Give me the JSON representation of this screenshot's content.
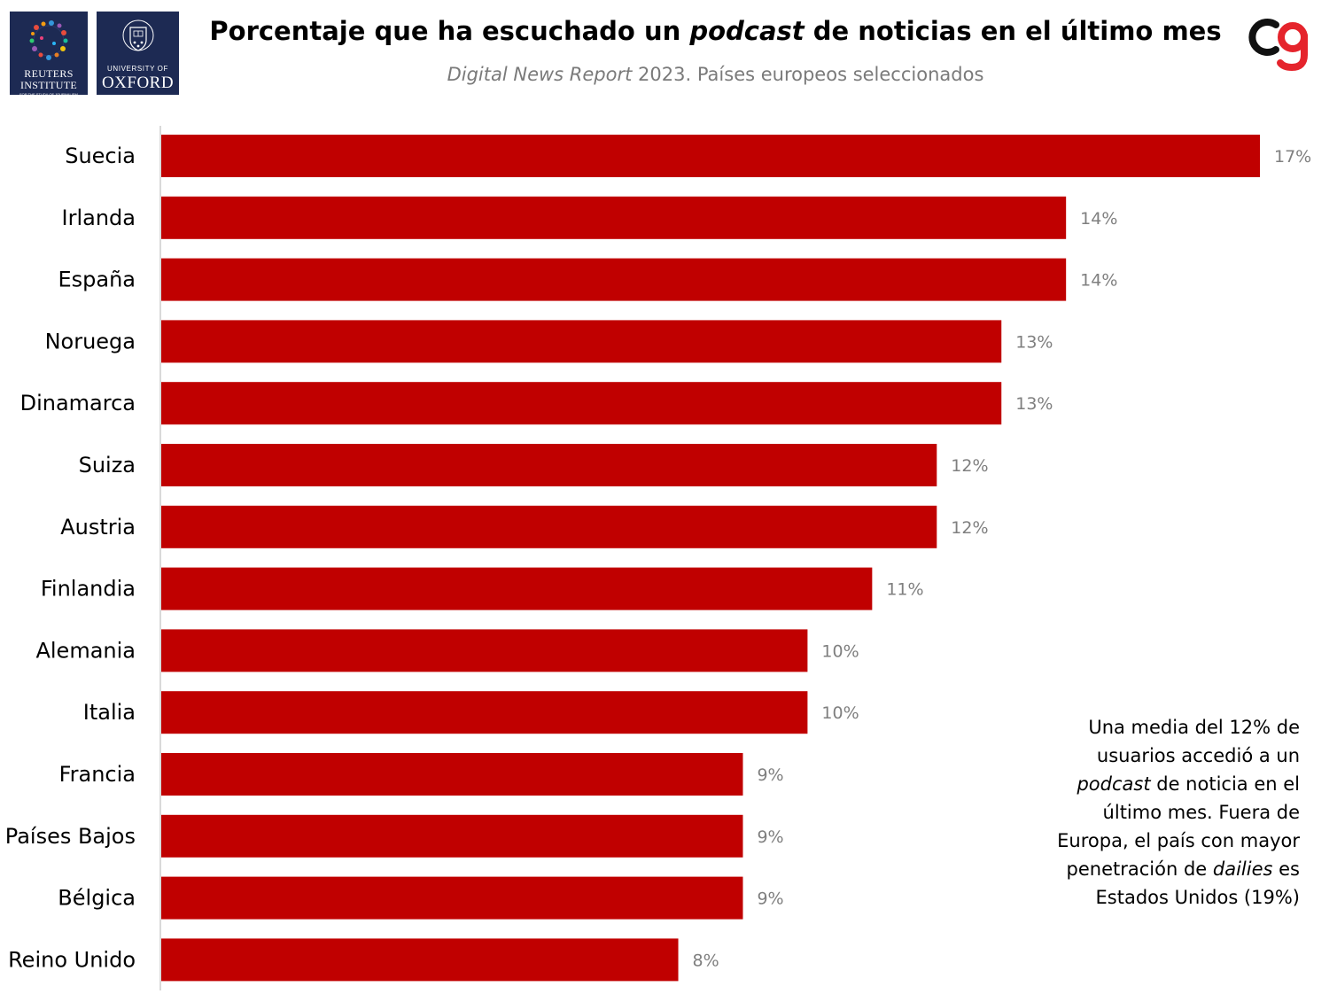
{
  "logos": {
    "reuters": {
      "line1": "REUTERS",
      "line2": "INSTITUTE",
      "line3": "FOR THE STUDY OF JOURNALISM"
    },
    "oxford": {
      "line1": "UNIVERSITY OF",
      "line2": "OXFORD"
    }
  },
  "header": {
    "title_before": "Porcentaje que ha escuchado un ",
    "title_italic": "podcast",
    "title_after": " de noticias en el último mes",
    "subtitle_italic": "Digital News Report",
    "subtitle_rest": " 2023. Países europeos seleccionados"
  },
  "brand": {
    "icon": "cg-logo-icon"
  },
  "colors": {
    "bar": "#c00000",
    "value_label": "#7f7f7f",
    "axis": "#d9d9d9",
    "brand_dark": "#111111",
    "brand_red": "#e5242c"
  },
  "note": {
    "part1": "Una media del 12% de usuarios accedió a un ",
    "italic1": "podcast",
    "part2": " de noticia en el último mes. Fuera de Europa, el país con mayor penetración de ",
    "italic2": "dailies",
    "part3": " es Estados Unidos (19%)"
  },
  "chart_data": {
    "type": "bar",
    "orientation": "horizontal",
    "categories": [
      "Suecia",
      "Irlanda",
      "España",
      "Noruega",
      "Dinamarca",
      "Suiza",
      "Austria",
      "Finlandia",
      "Alemania",
      "Italia",
      "Francia",
      "Países Bajos",
      "Bélgica",
      "Reino Unido"
    ],
    "values": [
      17,
      14,
      14,
      13,
      13,
      12,
      12,
      11,
      10,
      10,
      9,
      9,
      9,
      8
    ],
    "value_labels": [
      "17%",
      "14%",
      "14%",
      "13%",
      "13%",
      "12%",
      "12%",
      "11%",
      "10%",
      "10%",
      "9%",
      "9%",
      "9%",
      "8%"
    ],
    "xlim": [
      0,
      17
    ],
    "grid": false,
    "legend": "none"
  }
}
